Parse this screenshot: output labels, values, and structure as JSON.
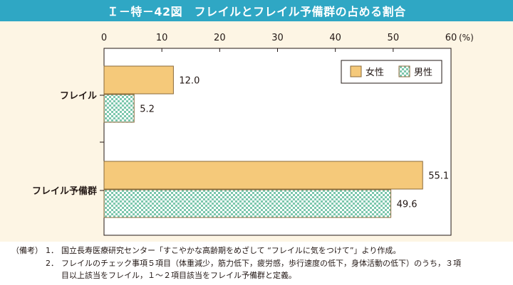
{
  "title": "Ｉ－特－42図　フレイルとフレイル予備群の占める割合",
  "chart_data": {
    "type": "bar",
    "orientation": "horizontal",
    "categories": [
      "フレイル",
      "フレイル予備群"
    ],
    "series": [
      {
        "name": "女性",
        "values": [
          12.0,
          55.1
        ],
        "color": "#f5c97a",
        "pattern": "solid"
      },
      {
        "name": "男性",
        "values": [
          5.2,
          49.6
        ],
        "color": "#bfe6d8",
        "pattern": "checker"
      }
    ],
    "data_labels": [
      [
        "12.0",
        "55.1"
      ],
      [
        "5.2",
        "49.6"
      ]
    ],
    "xlim": [
      0,
      60
    ],
    "xticks": [
      "0",
      "10",
      "20",
      "30",
      "40",
      "50",
      "60"
    ],
    "unit_label": "(%)",
    "legend_position": "top-right",
    "grid": false
  },
  "notes": {
    "lead": "（備考）",
    "items": [
      {
        "num": "1．",
        "text": "国立長寿医療研究センター「すこやかな高齢期をめざして “フレイルに気をつけて”」より作成。"
      },
      {
        "num": "2．",
        "text": "フレイルのチェック事項５項目（体重減少，筋力低下，疲労感，歩行速度の低下，身体活動の低下）のうち，３項",
        "cont": "目以上該当をフレイル，１～２項目該当をフレイル予備群と定義。"
      }
    ]
  },
  "colors": {
    "title_bg": "#2fa7c4",
    "panel_bg": "#fdf5e4",
    "female_fill": "#f5c97a",
    "male_fill": "#bfe6d8",
    "male_check": "#5fb89a",
    "bar_stroke": "#8a6a3a"
  }
}
